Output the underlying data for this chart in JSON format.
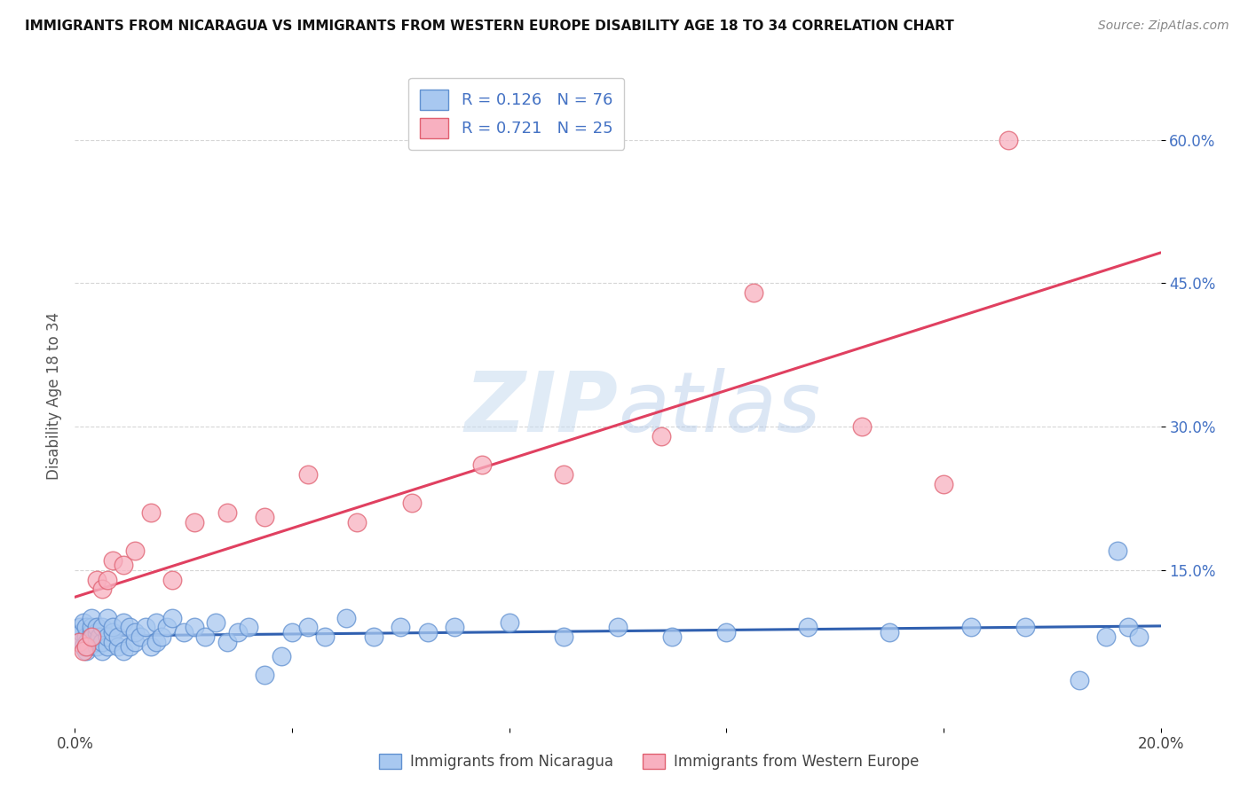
{
  "title": "IMMIGRANTS FROM NICARAGUA VS IMMIGRANTS FROM WESTERN EUROPE DISABILITY AGE 18 TO 34 CORRELATION CHART",
  "source": "Source: ZipAtlas.com",
  "ylabel": "Disability Age 18 to 34",
  "xlim": [
    0.0,
    0.2
  ],
  "ylim": [
    -0.015,
    0.68
  ],
  "yticks": [
    0.15,
    0.3,
    0.45,
    0.6
  ],
  "ytick_labels": [
    "15.0%",
    "30.0%",
    "45.0%",
    "60.0%"
  ],
  "R_nicaragua": 0.126,
  "N_nicaragua": 76,
  "R_western_europe": 0.721,
  "N_western_europe": 25,
  "color_nicaragua_face": "#a8c8f0",
  "color_nicaragua_edge": "#6090d0",
  "color_western_europe_face": "#f8b0c0",
  "color_western_europe_edge": "#e06070",
  "color_line_nicaragua": "#3060b0",
  "color_line_western_europe": "#e04060",
  "watermark_color": "#ddeeff",
  "nicaragua_x": [
    0.0008,
    0.001,
    0.001,
    0.0012,
    0.0015,
    0.0015,
    0.002,
    0.002,
    0.002,
    0.0022,
    0.0025,
    0.003,
    0.003,
    0.003,
    0.0032,
    0.004,
    0.004,
    0.004,
    0.004,
    0.0045,
    0.005,
    0.005,
    0.005,
    0.006,
    0.006,
    0.006,
    0.007,
    0.007,
    0.007,
    0.008,
    0.008,
    0.009,
    0.009,
    0.01,
    0.01,
    0.011,
    0.011,
    0.012,
    0.013,
    0.014,
    0.015,
    0.015,
    0.016,
    0.017,
    0.018,
    0.02,
    0.022,
    0.024,
    0.026,
    0.028,
    0.03,
    0.032,
    0.035,
    0.038,
    0.04,
    0.043,
    0.046,
    0.05,
    0.055,
    0.06,
    0.065,
    0.07,
    0.08,
    0.09,
    0.1,
    0.11,
    0.12,
    0.135,
    0.15,
    0.165,
    0.175,
    0.185,
    0.19,
    0.192,
    0.194,
    0.196
  ],
  "nicaragua_y": [
    0.08,
    0.075,
    0.09,
    0.085,
    0.07,
    0.095,
    0.065,
    0.08,
    0.09,
    0.075,
    0.07,
    0.085,
    0.09,
    0.1,
    0.08,
    0.07,
    0.075,
    0.085,
    0.09,
    0.08,
    0.065,
    0.075,
    0.09,
    0.07,
    0.08,
    0.1,
    0.075,
    0.085,
    0.09,
    0.07,
    0.08,
    0.065,
    0.095,
    0.07,
    0.09,
    0.075,
    0.085,
    0.08,
    0.09,
    0.07,
    0.075,
    0.095,
    0.08,
    0.09,
    0.1,
    0.085,
    0.09,
    0.08,
    0.095,
    0.075,
    0.085,
    0.09,
    0.04,
    0.06,
    0.085,
    0.09,
    0.08,
    0.1,
    0.08,
    0.09,
    0.085,
    0.09,
    0.095,
    0.08,
    0.09,
    0.08,
    0.085,
    0.09,
    0.085,
    0.09,
    0.09,
    0.035,
    0.08,
    0.17,
    0.09,
    0.08
  ],
  "western_europe_x": [
    0.0008,
    0.0015,
    0.002,
    0.003,
    0.004,
    0.005,
    0.006,
    0.007,
    0.009,
    0.011,
    0.014,
    0.018,
    0.022,
    0.028,
    0.035,
    0.043,
    0.052,
    0.062,
    0.075,
    0.09,
    0.108,
    0.125,
    0.145,
    0.16,
    0.172
  ],
  "western_europe_y": [
    0.075,
    0.065,
    0.07,
    0.08,
    0.14,
    0.13,
    0.14,
    0.16,
    0.155,
    0.17,
    0.21,
    0.14,
    0.2,
    0.21,
    0.205,
    0.25,
    0.2,
    0.22,
    0.26,
    0.25,
    0.29,
    0.44,
    0.3,
    0.24,
    0.6
  ],
  "legend_nicaragua": "Immigrants from Nicaragua",
  "legend_we": "Immigrants from Western Europe"
}
